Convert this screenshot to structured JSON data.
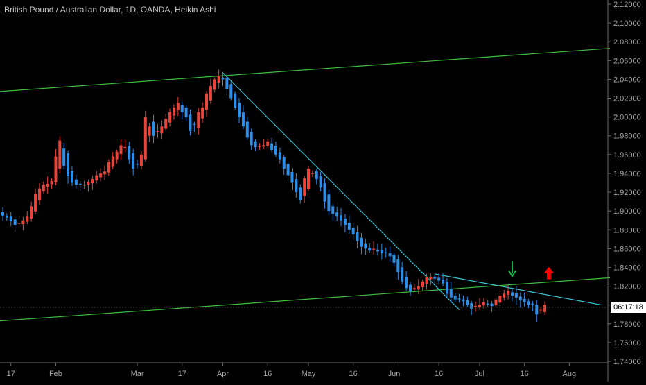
{
  "chart_data": {
    "type": "candlestick",
    "title": "British Pound / Australian Dollar, 1D, OANDA, Heikin Ashi",
    "countdown": "06:17:18",
    "ylim": [
      1.74,
      2.12
    ],
    "y_ticks": [
      "2.12000",
      "2.10000",
      "2.08000",
      "2.06000",
      "2.04000",
      "2.02000",
      "2.00000",
      "1.98000",
      "1.96000",
      "1.94000",
      "1.92000",
      "1.90000",
      "1.88000",
      "1.86000",
      "1.84000",
      "1.82000",
      "1.80000",
      "1.78000",
      "1.76000",
      "1.74000"
    ],
    "x_ticks": [
      {
        "label": "17",
        "bar": 2
      },
      {
        "label": "Feb",
        "bar": 13
      },
      {
        "label": "Mar",
        "bar": 33
      },
      {
        "label": "17",
        "bar": 44
      },
      {
        "label": "Apr",
        "bar": 54
      },
      {
        "label": "16",
        "bar": 65
      },
      {
        "label": "May",
        "bar": 75
      },
      {
        "label": "16",
        "bar": 86
      },
      {
        "label": "Jun",
        "bar": 96
      },
      {
        "label": "16",
        "bar": 107
      },
      {
        "label": "Jul",
        "bar": 117
      },
      {
        "label": "16",
        "bar": 128
      },
      {
        "label": "Aug",
        "bar": 139
      }
    ],
    "grid": false,
    "colors": {
      "up": "#e8443a",
      "down": "#2c8ee8",
      "channel": "#3fbf3f",
      "trendline": "#3ec6d6",
      "arrow_down": "#1db54a",
      "arrow_up": "#ff0000",
      "axis_text": "#a6a6a6"
    },
    "closes": [
      1.895,
      1.893,
      1.889,
      1.885,
      1.887,
      1.89,
      1.894,
      1.905,
      1.918,
      1.924,
      1.928,
      1.929,
      1.932,
      1.958,
      1.975,
      1.948,
      1.937,
      1.93,
      1.928,
      1.928,
      1.928,
      1.931,
      1.934,
      1.938,
      1.94,
      1.942,
      1.952,
      1.958,
      1.963,
      1.97,
      1.968,
      1.955,
      1.945,
      1.95,
      1.96,
      2.0,
      1.99,
      1.98,
      1.985,
      1.99,
      1.998,
      2.005,
      2.01,
      2.015,
      2.005,
      2.0,
      1.985,
      1.992,
      2.005,
      2.01,
      2.025,
      2.033,
      2.04,
      2.044,
      2.04,
      2.03,
      2.02,
      2.01,
      2.0,
      1.99,
      1.978,
      1.97,
      1.968,
      1.969,
      1.97,
      1.974,
      1.965,
      1.96,
      1.955,
      1.945,
      1.938,
      1.93,
      1.92,
      1.912,
      1.935,
      1.945,
      1.94,
      1.934,
      1.925,
      1.91,
      1.9,
      1.897,
      1.894,
      1.89,
      1.885,
      1.88,
      1.875,
      1.868,
      1.862,
      1.86,
      1.858,
      1.86,
      1.857,
      1.855,
      1.855,
      1.852,
      1.845,
      1.835,
      1.825,
      1.818,
      1.815,
      1.818,
      1.82,
      1.825,
      1.83,
      1.83,
      1.828,
      1.826,
      1.823,
      1.812,
      1.808,
      1.806,
      1.806,
      1.804,
      1.8,
      1.796,
      1.799,
      1.8,
      1.803,
      1.8,
      1.799,
      1.806,
      1.81,
      1.812,
      1.815,
      1.81,
      1.808,
      1.805,
      1.803,
      1.8,
      1.8,
      1.79,
      1.795,
      1.8
    ],
    "channel_upper": [
      {
        "bar": -1,
        "price": 2.027
      },
      {
        "bar": 149,
        "price": 2.073
      }
    ],
    "channel_lower": [
      {
        "bar": -1,
        "price": 1.783
      },
      {
        "bar": 149,
        "price": 1.829
      }
    ],
    "trendlines": [
      {
        "from": {
          "bar": 54,
          "price": 2.047
        },
        "to": {
          "bar": 112,
          "price": 1.795
        }
      },
      {
        "from": {
          "bar": 106,
          "price": 1.833
        },
        "to": {
          "bar": 147,
          "price": 1.8
        }
      }
    ],
    "signals": [
      {
        "type": "down",
        "bar": 125,
        "price": 1.838
      },
      {
        "type": "up",
        "bar": 134,
        "price": 1.834
      }
    ]
  }
}
